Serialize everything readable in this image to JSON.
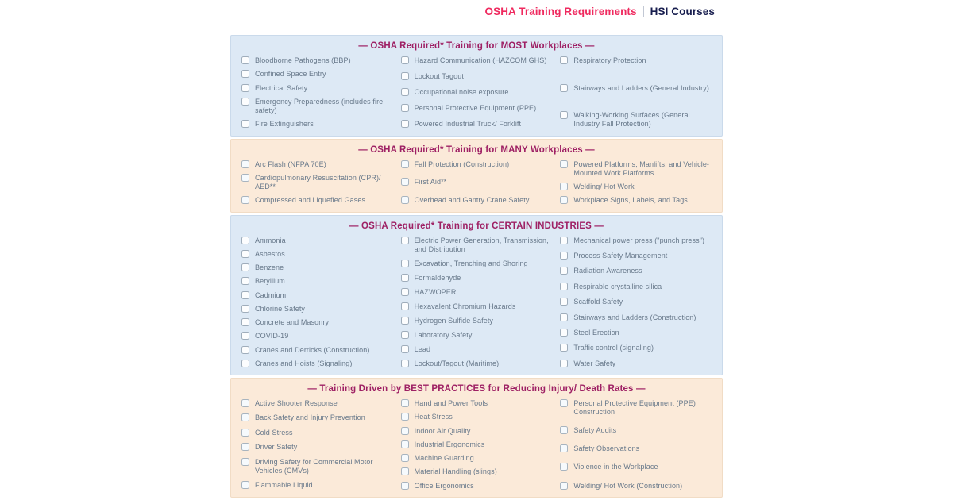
{
  "header": {
    "brand_left": "OSHA Training Requirements",
    "brand_right": "HSI Courses"
  },
  "colors": {
    "brand_pink": "#ef2a5f",
    "brand_navy": "#171d4e",
    "heading": "#9e2064",
    "item_text": "#67788a",
    "blue_bg": "#dde9f5",
    "peach_bg": "#fbead9"
  },
  "sections": [
    {
      "id": "most-workplaces",
      "theme": "blue",
      "title": "— OSHA Required* Training for MOST Workplaces —",
      "columns": [
        [
          "Bloodborne Pathogens (BBP)",
          "Confined Space Entry",
          "Electrical Safety",
          "Emergency Preparedness (includes fire safety)",
          "Fire Extinguishers"
        ],
        [
          "Hazard Communication (HAZCOM GHS)",
          "Lockout Tagout",
          "Occupational noise exposure",
          "Personal Protective Equipment (PPE)",
          "Powered Industrial Truck/ Forklift"
        ],
        [
          "Respiratory Protection",
          "Stairways and Ladders (General Industry)",
          "Walking-Working Surfaces (General Industry Fall Protection)"
        ]
      ]
    },
    {
      "id": "many-workplaces",
      "theme": "peach",
      "title": "— OSHA Required* Training for MANY Workplaces —",
      "columns": [
        [
          "Arc Flash (NFPA 70E)",
          "Cardiopulmonary Resuscitation (CPR)/ AED**",
          "Compressed and Liquefied Gases"
        ],
        [
          "Fall Protection (Construction)",
          "First Aid**",
          "Overhead and Gantry Crane Safety"
        ],
        [
          "Powered Platforms, Manlifts, and Vehicle-Mounted Work Platforms",
          "Welding/ Hot Work",
          "Workplace Signs, Labels, and Tags"
        ]
      ]
    },
    {
      "id": "certain-industries",
      "theme": "blue",
      "title": "— OSHA Required* Training for CERTAIN INDUSTRIES —",
      "columns": [
        [
          "Ammonia",
          "Asbestos",
          "Benzene",
          "Beryllium",
          "Cadmium",
          "Chlorine Safety",
          "Concrete and Masonry",
          "COVID-19",
          "Cranes and Derricks (Construction)",
          "Cranes and Hoists (Signaling)"
        ],
        [
          "Electric Power Generation, Transmission, and Distribution",
          "Excavation, Trenching and Shoring",
          "Formaldehyde",
          "HAZWOPER",
          "Hexavalent Chromium Hazards",
          "Hydrogen Sulfide Safety",
          "Laboratory Safety",
          "Lead",
          "Lockout/Tagout (Maritime)"
        ],
        [
          "Mechanical power press (\"punch press\")",
          "Process Safety Management",
          "Radiation Awareness",
          "Respirable crystalline silica",
          "Scaffold Safety",
          "Stairways and Ladders (Construction)",
          "Steel Erection",
          "Traffic control (signaling)",
          "Water Safety"
        ]
      ]
    },
    {
      "id": "best-practices",
      "theme": "peach",
      "title": "— Training Driven by BEST PRACTICES for Reducing Injury/ Death Rates —",
      "columns": [
        [
          "Active Shooter Response",
          "Back Safety and Injury Prevention",
          "Cold Stress",
          "Driver Safety",
          "Driving Safety for Commercial Motor Vehicles (CMVs)",
          "Flammable Liquid"
        ],
        [
          "Hand and Power Tools",
          "Heat Stress",
          "Indoor Air Quality",
          "Industrial Ergonomics",
          "Machine Guarding",
          "Material Handling (slings)",
          "Office Ergonomics"
        ],
        [
          "Personal Protective Equipment (PPE) Construction",
          "Safety Audits",
          "Safety Observations",
          "Violence in the Workplace",
          "Welding/ Hot Work (Construction)"
        ]
      ]
    }
  ]
}
